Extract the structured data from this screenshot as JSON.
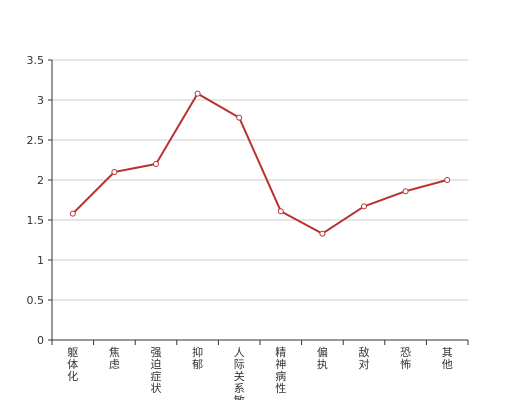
{
  "chart_data": {
    "type": "line",
    "categories": [
      "躯体化",
      "焦虑",
      "强迫症状",
      "抑郁",
      "人际关系敏感",
      "精神病性",
      "偏执",
      "敌对",
      "恐怖",
      "其他"
    ],
    "series": [
      {
        "values": [
          1.58,
          2.1,
          2.2,
          3.08,
          2.78,
          1.61,
          1.33,
          1.67,
          1.86,
          2.0
        ]
      }
    ],
    "yticks": [
      "0",
      "0.5",
      "1",
      "1.5",
      "2",
      "2.5",
      "3",
      "3.5"
    ],
    "ylim": [
      0,
      3.5
    ],
    "grid": true,
    "line_color": "#b83232",
    "grid_color": "#cccccc",
    "axis_color": "#333333"
  }
}
